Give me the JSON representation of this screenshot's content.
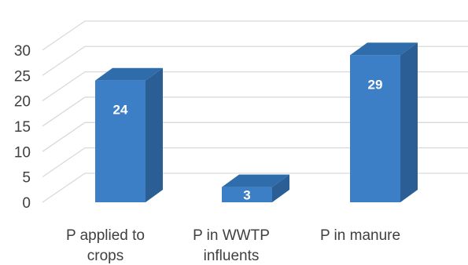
{
  "chart_data": {
    "type": "bar",
    "style": "3d-column",
    "categories": [
      [
        "P applied to",
        "crops"
      ],
      [
        "P in WWTP",
        "influents"
      ],
      [
        "P in manure"
      ]
    ],
    "values": [
      24,
      3,
      29
    ],
    "data_labels": [
      "24",
      "3",
      "29"
    ],
    "y_ticks": [
      "0",
      "5",
      "10",
      "15",
      "20",
      "25",
      "30"
    ],
    "ylim": [
      0,
      30
    ],
    "grid": true,
    "legend": "none",
    "title": "",
    "xlabel": "",
    "ylabel": "",
    "colors": {
      "front": "#3d7fc7",
      "side": "#2a5e94",
      "top": "#2f6cab"
    }
  }
}
